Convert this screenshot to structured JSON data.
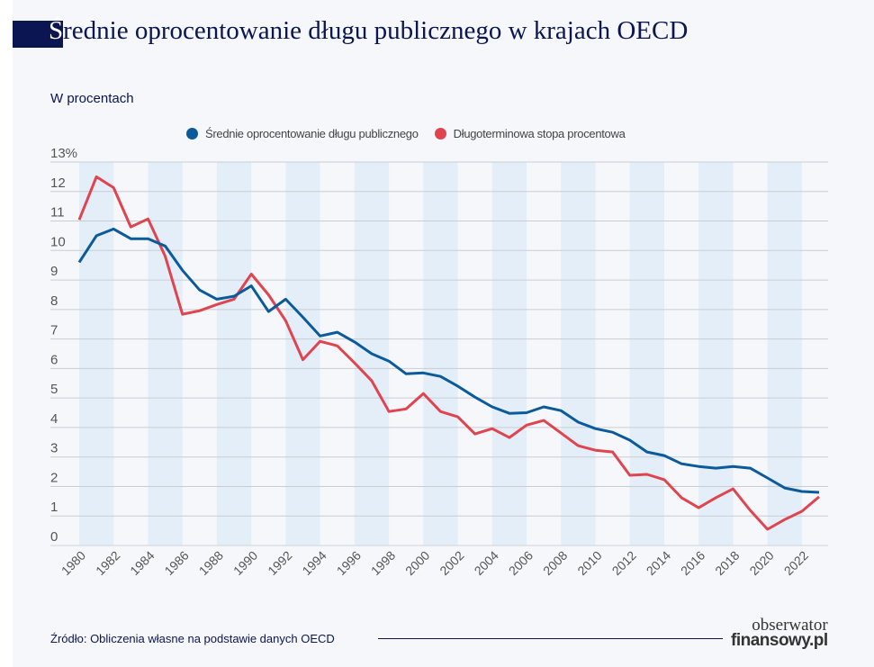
{
  "title_first": "Ś",
  "title_rest": "rednie oprocentowanie długu publicznego w krajach OECD",
  "subtitle": "W procentach",
  "source": "Źródło: Obliczenia własne na podstawie danych OECD",
  "logo": {
    "line1": "obserwator",
    "line2": "finansowy.pl"
  },
  "colors": {
    "series1": "#0b5a9c",
    "series2": "#e0444f",
    "title": "#0a1551",
    "band": "#e3eef9"
  },
  "chart_data": {
    "type": "line",
    "ylabel": "W procentach",
    "ylim": [
      0,
      13
    ],
    "yticks": [
      "0",
      "1",
      "2",
      "3",
      "4",
      "5",
      "6",
      "7",
      "8",
      "9",
      "10",
      "11",
      "12",
      "13%"
    ],
    "xlim": [
      1980,
      2023
    ],
    "xticks": [
      "1980",
      "1982",
      "1984",
      "1986",
      "1988",
      "1990",
      "1992",
      "1994",
      "1996",
      "1998",
      "2000",
      "2002",
      "2004",
      "2006",
      "2008",
      "2010",
      "2012",
      "2014",
      "2016",
      "2018",
      "2020",
      "2022"
    ],
    "grid": true,
    "legend_position": "top",
    "x": [
      1980,
      1981,
      1982,
      1983,
      1984,
      1985,
      1986,
      1987,
      1988,
      1989,
      1990,
      1991,
      1992,
      1993,
      1994,
      1995,
      1996,
      1997,
      1998,
      1999,
      2000,
      2001,
      2002,
      2003,
      2004,
      2005,
      2006,
      2007,
      2008,
      2009,
      2010,
      2011,
      2012,
      2013,
      2014,
      2015,
      2016,
      2017,
      2018,
      2019,
      2020,
      2021,
      2022,
      2023
    ],
    "series": [
      {
        "name": "Średnie oprocentowanie długu publicznego",
        "color": "#0b5a9c",
        "values": [
          9.6,
          10.5,
          10.73,
          10.4,
          10.4,
          10.15,
          9.33,
          8.66,
          8.35,
          8.45,
          8.8,
          7.93,
          8.35,
          7.74,
          7.1,
          7.23,
          6.9,
          6.5,
          6.25,
          5.82,
          5.85,
          5.73,
          5.4,
          5.03,
          4.7,
          4.48,
          4.5,
          4.7,
          4.57,
          4.18,
          3.96,
          3.84,
          3.57,
          3.17,
          3.05,
          2.77,
          2.68,
          2.62,
          2.68,
          2.62,
          2.29,
          1.95,
          1.83,
          1.8
        ]
      },
      {
        "name": "Długoterminowa stopa procentowa",
        "color": "#e0444f",
        "values": [
          11.04,
          12.5,
          12.13,
          10.8,
          11.07,
          9.8,
          7.84,
          7.96,
          8.17,
          8.35,
          9.2,
          8.5,
          7.62,
          6.3,
          6.92,
          6.77,
          6.19,
          5.58,
          4.54,
          4.63,
          5.15,
          4.54,
          4.36,
          3.78,
          3.96,
          3.66,
          4.08,
          4.24,
          3.81,
          3.38,
          3.23,
          3.17,
          2.38,
          2.41,
          2.23,
          1.62,
          1.28,
          1.62,
          1.92,
          1.19,
          0.55,
          0.88,
          1.16,
          1.65
        ]
      }
    ]
  }
}
